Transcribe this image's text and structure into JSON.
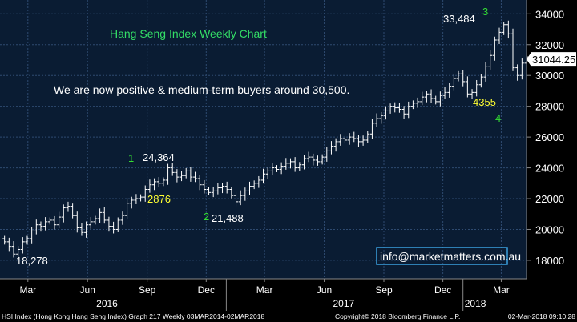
{
  "chart_data": {
    "type": "ohlc",
    "title": "Hang Seng Index Weekly Chart",
    "commentary": "We are now positive & medium-term buyers around 30,500.",
    "contact": "info@marketmatters.com.au",
    "footer_left": "HSI Index (Hong Kong Hang Seng Index) Graph 217  Weekly 03MAR2014-02MAR2018",
    "footer_right": "Copyright© 2018 Bloomberg Finance L.P.",
    "footer_date": "02-Mar-2018 09:10:28",
    "last_price": "31044.25",
    "ylim": [
      16800,
      34900
    ],
    "y_ticks": [
      18000,
      20000,
      22000,
      24000,
      26000,
      28000,
      30000,
      32000,
      34000
    ],
    "y_tick_labels": [
      "18000",
      "20000",
      "22000",
      "24000",
      "26000",
      "28000",
      "30000",
      "32000",
      "34000"
    ],
    "x_ticks": [
      {
        "label": "Mar",
        "date": "2016-03-01"
      },
      {
        "label": "Jun",
        "date": "2016-06-01"
      },
      {
        "label": "Sep",
        "date": "2016-09-01"
      },
      {
        "label": "Dec",
        "date": "2016-12-01"
      },
      {
        "label": "Mar",
        "date": "2017-03-01"
      },
      {
        "label": "Jun",
        "date": "2017-06-01"
      },
      {
        "label": "Sep",
        "date": "2017-09-01"
      },
      {
        "label": "Dec",
        "date": "2017-12-01"
      },
      {
        "label": "Mar",
        "date": "2018-03-01"
      }
    ],
    "years": [
      {
        "label": "2016",
        "date": "2016-07-01"
      },
      {
        "label": "2017",
        "date": "2017-07-01"
      },
      {
        "label": "2018",
        "date": "2018-01-20"
      }
    ],
    "year_boundaries": [
      "2017-01-01",
      "2018-01-01"
    ],
    "x_start": "2016-01-18",
    "x_end": "2018-04-09",
    "first_week": "2016-01-25",
    "week_days": 7,
    "weekly_closes": [
      19200,
      18900,
      18400,
      18700,
      19200,
      19400,
      19900,
      20300,
      20200,
      20500,
      20600,
      20300,
      20800,
      21400,
      21500,
      20900,
      20100,
      19800,
      20300,
      20500,
      20700,
      21100,
      20600,
      20200,
      20000,
      20600,
      20900,
      21700,
      21900,
      22000,
      22100,
      22600,
      22900,
      23100,
      23000,
      23200,
      24000,
      23700,
      23400,
      23500,
      23800,
      23400,
      23300,
      22900,
      22600,
      22400,
      22500,
      22700,
      22800,
      22600,
      22200,
      21800,
      22200,
      22500,
      22800,
      23000,
      23200,
      23600,
      23800,
      24000,
      23900,
      24100,
      24300,
      24400,
      24000,
      24200,
      24600,
      24700,
      24500,
      24400,
      24700,
      25100,
      25400,
      25700,
      25900,
      25800,
      26000,
      25900,
      25700,
      25800,
      26200,
      26900,
      27200,
      27400,
      27700,
      28000,
      27900,
      27800,
      27500,
      28000,
      28200,
      28300,
      28600,
      28800,
      28500,
      28300,
      28700,
      28900,
      29300,
      29800,
      30100,
      29600,
      28800,
      28900,
      29400,
      29900,
      30600,
      31300,
      32300,
      32800,
      33300,
      32700,
      30500,
      30000,
      30800,
      31200,
      31044
    ],
    "annotations": [
      {
        "text": "18,278",
        "kind": "low",
        "date": "2016-02-08",
        "value": 18278,
        "color": "#ffffff"
      },
      {
        "text": "24,364",
        "kind": "high",
        "date": "2016-09-05",
        "value": 24364,
        "color": "#ffffff"
      },
      {
        "text": "2876",
        "kind": "move",
        "color": "#ffff33"
      },
      {
        "text": "1",
        "kind": "wave",
        "color": "#33dd33"
      },
      {
        "text": "2",
        "kind": "wave",
        "color": "#33dd33"
      },
      {
        "text": "21,488",
        "kind": "low",
        "date": "2016-12-26",
        "value": 21488,
        "color": "#ffffff"
      },
      {
        "text": "33,484",
        "kind": "high",
        "date": "2018-01-29",
        "value": 33484,
        "color": "#ffffff"
      },
      {
        "text": "3",
        "kind": "wave",
        "color": "#33dd33"
      },
      {
        "text": "4355",
        "kind": "move",
        "color": "#ffff33"
      },
      {
        "text": "4",
        "kind": "wave",
        "color": "#33dd33"
      }
    ],
    "colors": {
      "background": "#000000",
      "panel": "#0a1c33",
      "grid": "#2e4a70",
      "bars": "#ffffff",
      "last_price_box": "#ffffff",
      "contact_box": "#3aa0e0",
      "title": "#33dd66",
      "axis_text": "#ffffff"
    }
  }
}
